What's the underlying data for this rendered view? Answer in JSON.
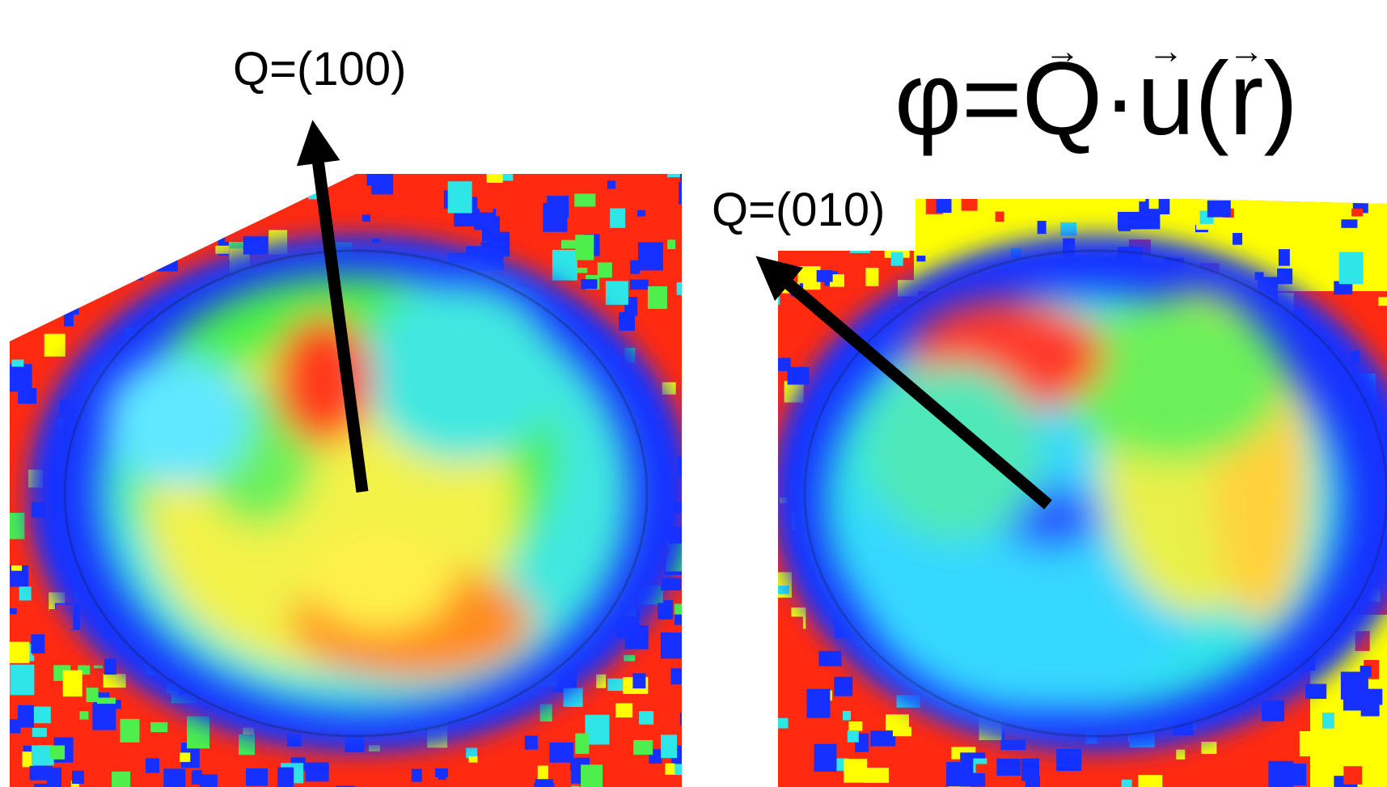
{
  "panels": [
    {
      "id": "left",
      "label": "Q=(100)"
    },
    {
      "id": "right",
      "label": "Q=(010)"
    }
  ],
  "formula": {
    "phi": "φ",
    "equals": "=",
    "Q": "Q",
    "dot": "·",
    "u": "u",
    "open": "(",
    "r": "r",
    "close": ")",
    "arrow": "→"
  },
  "colors": {
    "red": "#ff2a10",
    "blue": "#1530ff",
    "cyan": "#2ee6e6",
    "green": "#4cef4c",
    "yellow": "#ffff00",
    "arrow": "#000000"
  }
}
